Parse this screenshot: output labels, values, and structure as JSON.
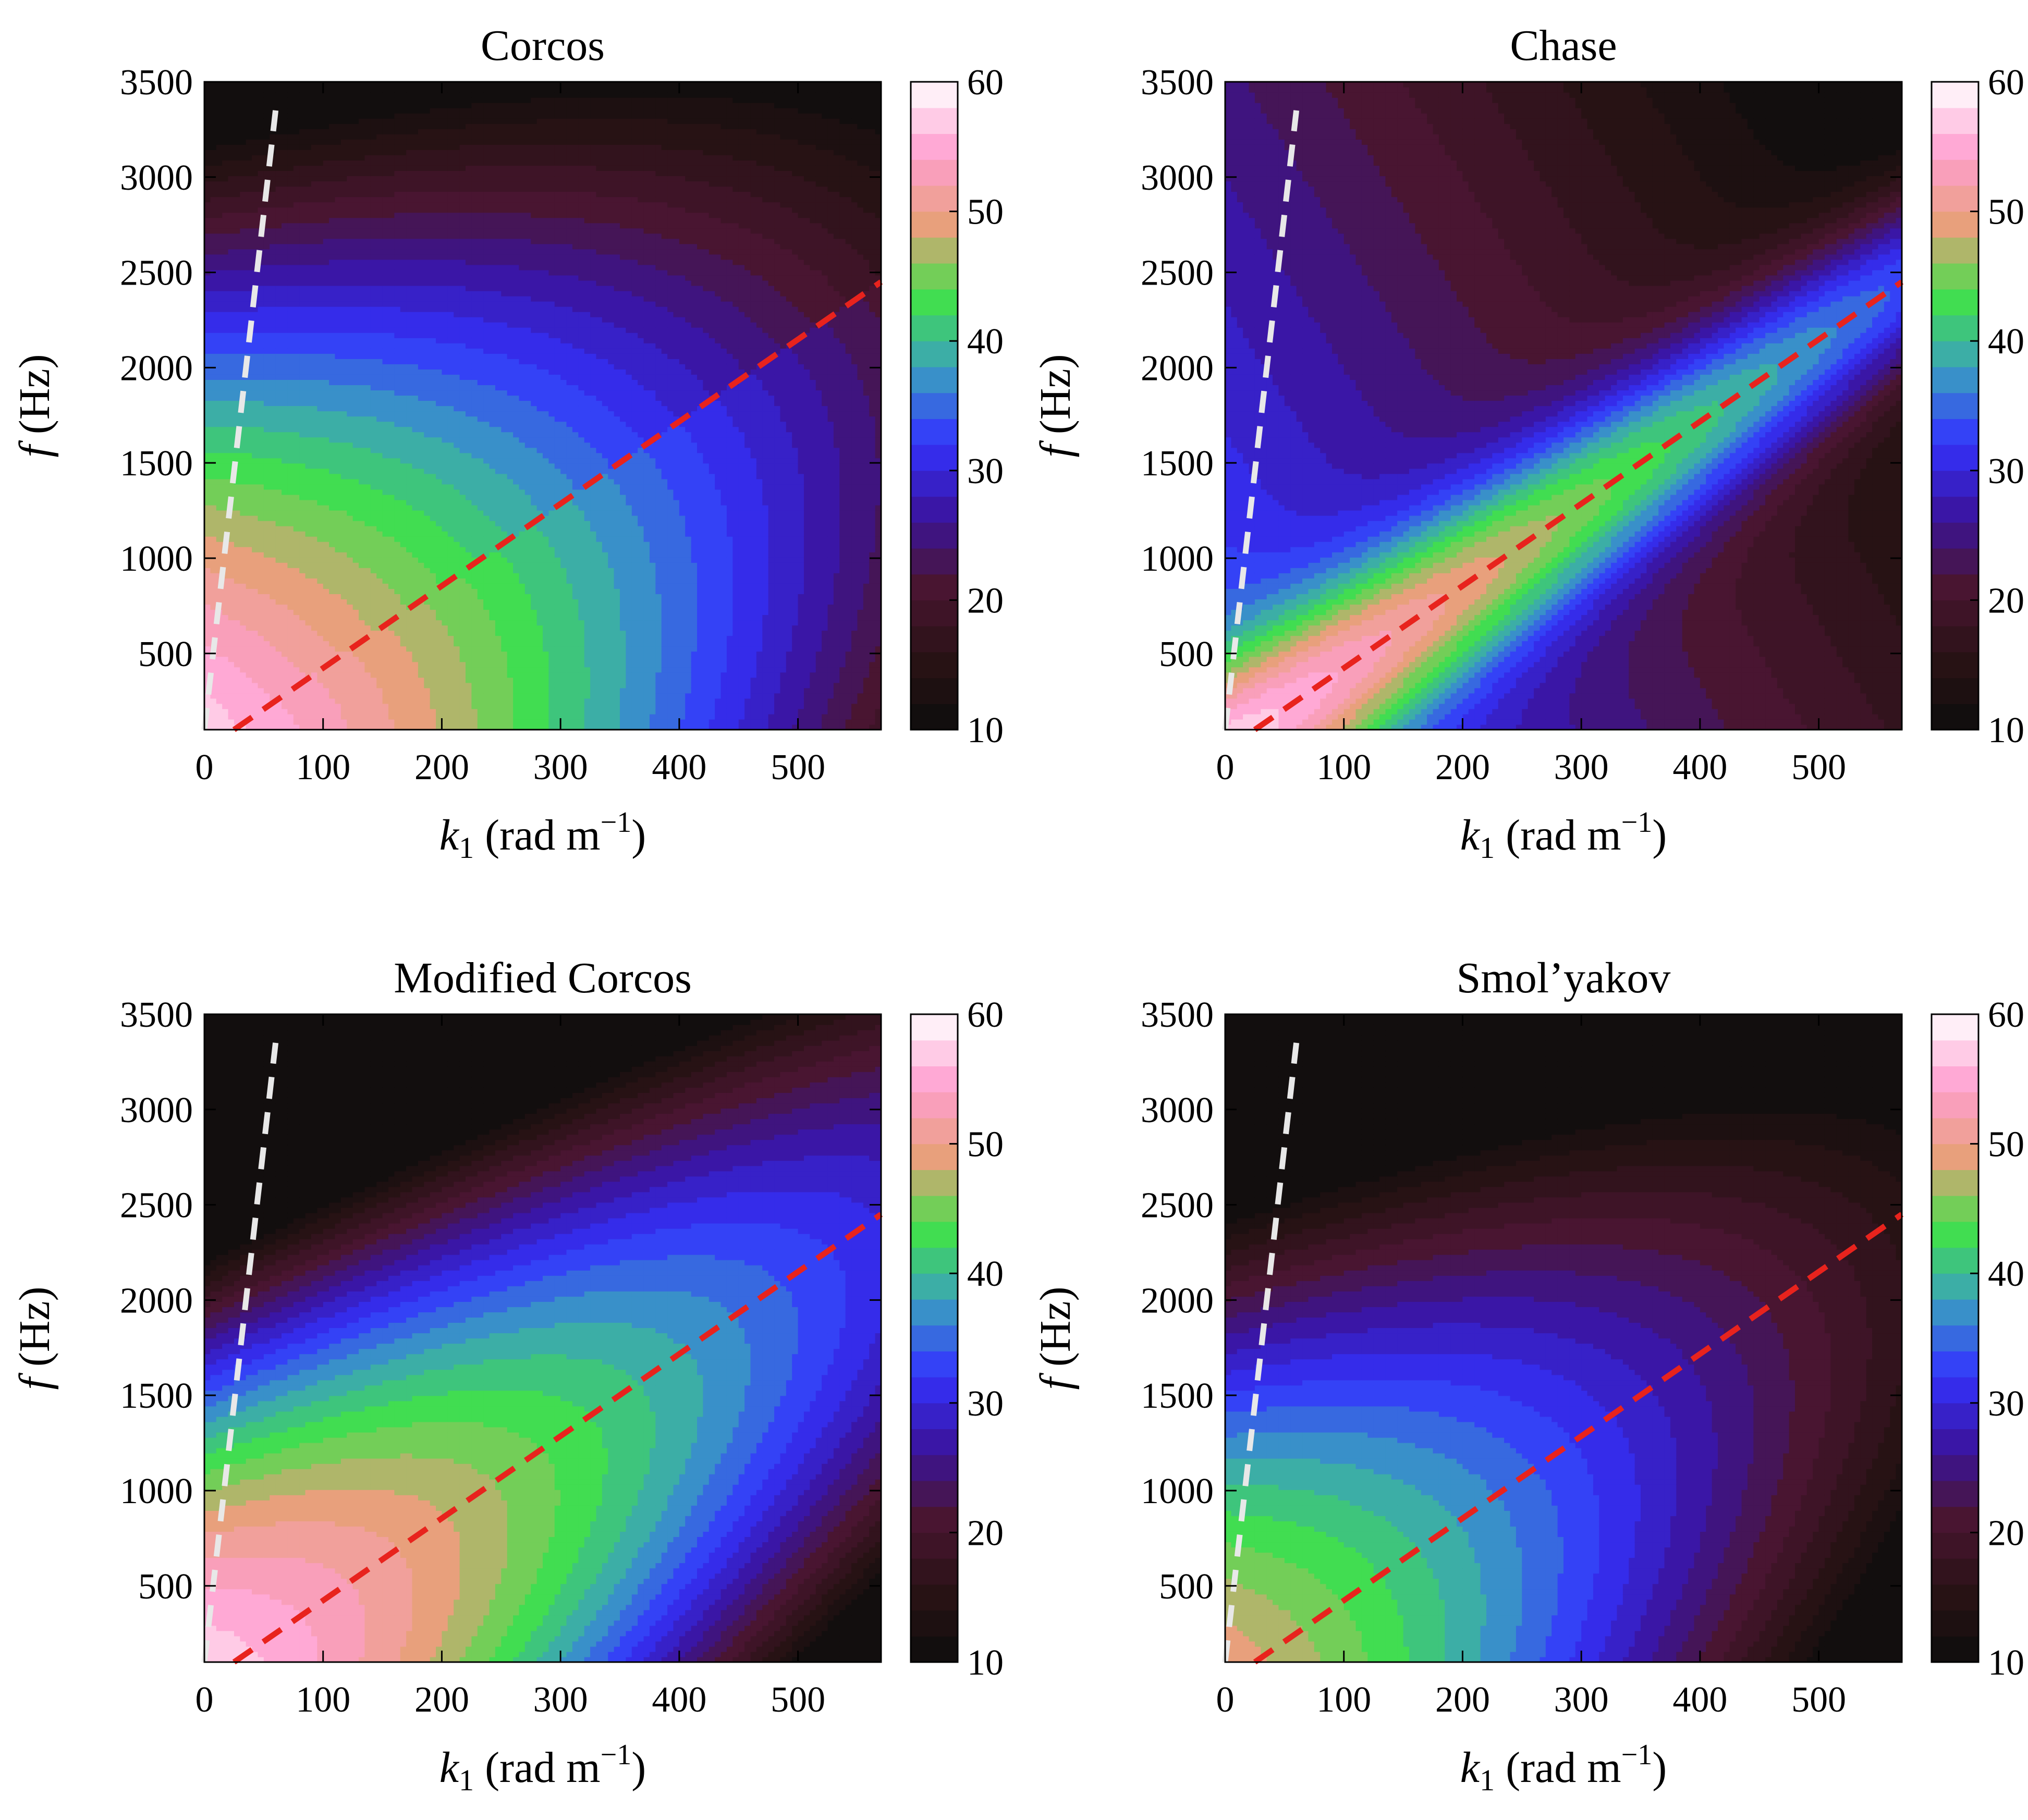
{
  "chart_data": [
    {
      "type": "heatmap",
      "title": "Corcos",
      "model": "corcos",
      "xlabel": "k1 (rad m−1)",
      "ylabel": "f (Hz)",
      "xlim": [
        0,
        570
      ],
      "ylim": [
        100,
        3500
      ],
      "xticks": [
        0,
        100,
        200,
        300,
        400,
        500
      ],
      "yticks": [
        500,
        1000,
        1500,
        2000,
        2500,
        3000,
        3500
      ],
      "colorbar": {
        "range": [
          10,
          60
        ],
        "ticks": [
          10,
          20,
          30,
          40,
          50,
          60
        ],
        "levels": 25
      },
      "overlay_lines": [
        {
          "color": "#e8e8e8",
          "style": "dashed",
          "points": [
            [
              0,
              100
            ],
            [
              60,
              3350
            ]
          ]
        },
        {
          "color": "#e8231d",
          "style": "dashed",
          "points": [
            [
              25,
              100
            ],
            [
              570,
              2450
            ]
          ]
        }
      ]
    },
    {
      "type": "heatmap",
      "title": "Chase",
      "model": "chase",
      "xlabel": "k1 (rad m−1)",
      "ylabel": "f (Hz)",
      "xlim": [
        0,
        570
      ],
      "ylim": [
        100,
        3500
      ],
      "xticks": [
        0,
        100,
        200,
        300,
        400,
        500
      ],
      "yticks": [
        500,
        1000,
        1500,
        2000,
        2500,
        3000,
        3500
      ],
      "colorbar": {
        "range": [
          10,
          60
        ],
        "ticks": [
          10,
          20,
          30,
          40,
          50,
          60
        ],
        "levels": 25
      },
      "overlay_lines": [
        {
          "color": "#e8e8e8",
          "style": "dashed",
          "points": [
            [
              0,
              100
            ],
            [
              60,
              3350
            ]
          ]
        },
        {
          "color": "#e8231d",
          "style": "dashed",
          "points": [
            [
              25,
              100
            ],
            [
              570,
              2450
            ]
          ]
        }
      ]
    },
    {
      "type": "heatmap",
      "title": "Modified Corcos",
      "model": "modcorcos",
      "xlabel": "k1 (rad m−1)",
      "ylabel": "f (Hz)",
      "xlim": [
        0,
        570
      ],
      "ylim": [
        100,
        3500
      ],
      "xticks": [
        0,
        100,
        200,
        300,
        400,
        500
      ],
      "yticks": [
        500,
        1000,
        1500,
        2000,
        2500,
        3000,
        3500
      ],
      "colorbar": {
        "range": [
          10,
          60
        ],
        "ticks": [
          10,
          20,
          30,
          40,
          50,
          60
        ],
        "levels": 25
      },
      "overlay_lines": [
        {
          "color": "#e8e8e8",
          "style": "dashed",
          "points": [
            [
              0,
              100
            ],
            [
              60,
              3350
            ]
          ]
        },
        {
          "color": "#e8231d",
          "style": "dashed",
          "points": [
            [
              25,
              100
            ],
            [
              570,
              2450
            ]
          ]
        }
      ]
    },
    {
      "type": "heatmap",
      "title": "Smol’yakov",
      "model": "smolyakov",
      "xlabel": "k1 (rad m−1)",
      "ylabel": "f (Hz)",
      "xlim": [
        0,
        570
      ],
      "ylim": [
        100,
        3500
      ],
      "xticks": [
        0,
        100,
        200,
        300,
        400,
        500
      ],
      "yticks": [
        500,
        1000,
        1500,
        2000,
        2500,
        3000,
        3500
      ],
      "colorbar": {
        "range": [
          10,
          60
        ],
        "ticks": [
          10,
          20,
          30,
          40,
          50,
          60
        ],
        "levels": 25
      },
      "overlay_lines": [
        {
          "color": "#e8e8e8",
          "style": "dashed",
          "points": [
            [
              0,
              100
            ],
            [
              60,
              3350
            ]
          ]
        },
        {
          "color": "#e8231d",
          "style": "dashed",
          "points": [
            [
              25,
              100
            ],
            [
              570,
              2450
            ]
          ]
        }
      ]
    }
  ],
  "colormap": [
    "#0d0d0d",
    "#2a1215",
    "#4a1532",
    "#3a14a0",
    "#3333ff",
    "#3a9fc0",
    "#41e14a",
    "#e8a07a",
    "#ff9fd0",
    "#ffffff"
  ]
}
